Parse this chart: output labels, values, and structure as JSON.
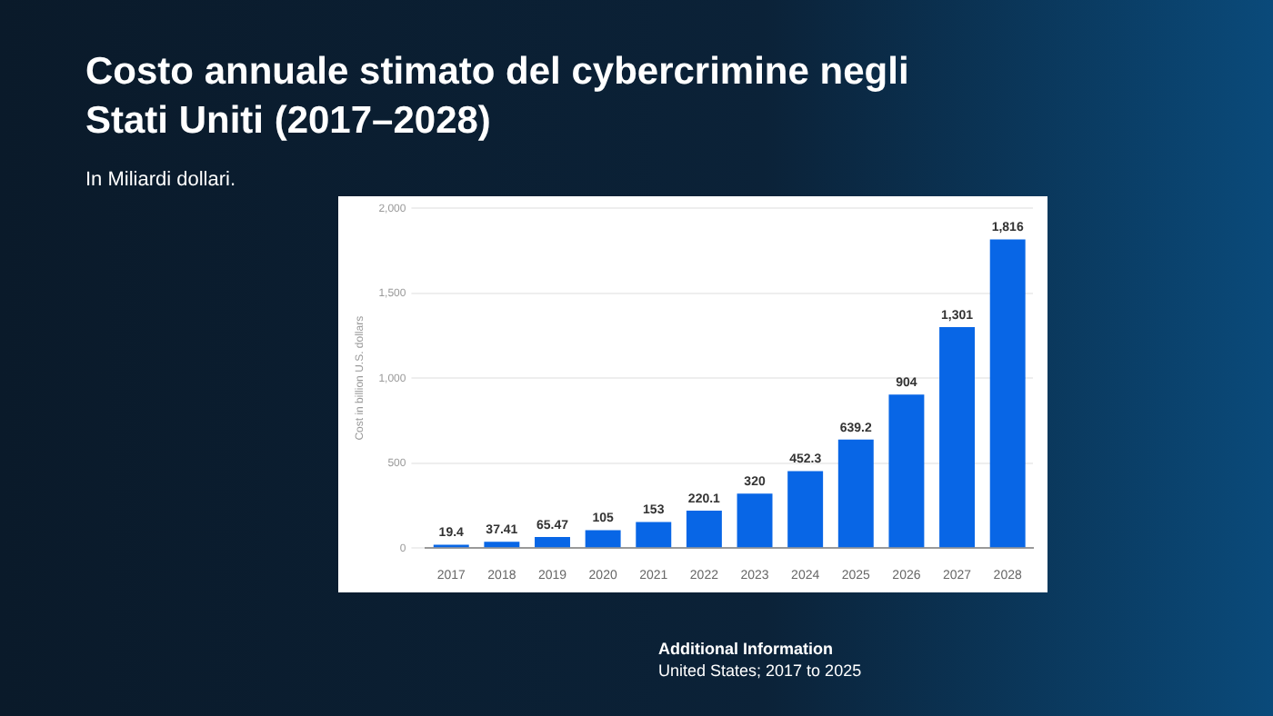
{
  "chart_data": {
    "type": "bar",
    "title": "Costo annuale stimato del cybercrimine negli Stati Uniti (2017–2028)",
    "subtitle": "In Miliardi dollari.",
    "ylabel": "Cost in billion U.S. dollars",
    "categories": [
      "2017",
      "2018",
      "2019",
      "2020",
      "2021",
      "2022",
      "2023",
      "2024",
      "2025",
      "2026",
      "2027",
      "2028"
    ],
    "values": [
      19.4,
      37.41,
      65.47,
      105,
      153,
      220.1,
      320,
      452.3,
      639.2,
      904,
      1301,
      1816
    ],
    "value_labels": [
      "19.4",
      "37.41",
      "65.47",
      "105",
      "153",
      "220.1",
      "320",
      "452.3",
      "639.2",
      "904",
      "1,301",
      "1,816"
    ],
    "color": "#0866e6",
    "ylim": [
      0,
      2000
    ],
    "yticks": [
      0,
      500,
      {
        "value": 1000,
        "label": "1,000"
      },
      {
        "value": 1500,
        "label": "1,500"
      },
      {
        "value": 2000,
        "label": "2,000"
      }
    ],
    "grid": "y",
    "legend": false,
    "annotations": [
      "Additional Information",
      "United States; 2017 to 2025"
    ]
  }
}
